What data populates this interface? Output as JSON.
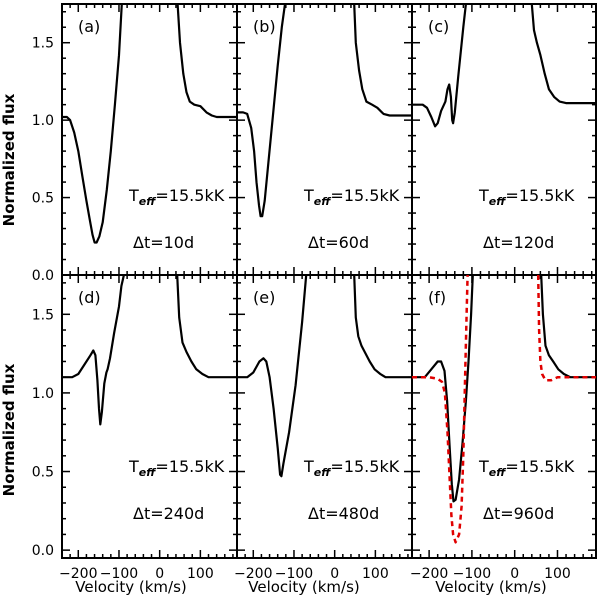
{
  "figure": {
    "ylabel": "Normalized flux",
    "xlabel": "Velocity (km/s)",
    "teff_main": "T",
    "teff_sub": "eff",
    "teff_value": "=15.5kK",
    "x_ticks": [
      -200,
      -100,
      0,
      100
    ],
    "y_ticks": [
      0.0,
      0.5,
      1.0,
      1.5
    ],
    "y_tick_labels": [
      "0.0",
      "0.5",
      "1.0",
      "1.5"
    ],
    "x_tick_labels": [
      "−200",
      "−100",
      "0",
      "100"
    ]
  },
  "chart_data": [
    {
      "id": "a",
      "label": "(a)",
      "delta_t": "Δt=10d",
      "type": "line",
      "xlim": [
        -240,
        190
      ],
      "ylim": [
        0.0,
        1.75
      ],
      "series": [
        {
          "name": "model",
          "style": "solid-black",
          "points": [
            [
              -240,
              1.02
            ],
            [
              -228,
              1.02
            ],
            [
              -220,
              1.0
            ],
            [
              -210,
              0.92
            ],
            [
              -200,
              0.8
            ],
            [
              -190,
              0.64
            ],
            [
              -180,
              0.48
            ],
            [
              -172,
              0.36
            ],
            [
              -165,
              0.26
            ],
            [
              -160,
              0.21
            ],
            [
              -155,
              0.21
            ],
            [
              -148,
              0.25
            ],
            [
              -140,
              0.34
            ],
            [
              -130,
              0.55
            ],
            [
              -120,
              0.8
            ],
            [
              -110,
              1.1
            ],
            [
              -100,
              1.42
            ],
            [
              -93,
              1.75
            ],
            null,
            [
              44,
              1.75
            ],
            [
              50,
              1.5
            ],
            [
              58,
              1.3
            ],
            [
              66,
              1.18
            ],
            [
              74,
              1.12
            ],
            [
              85,
              1.1
            ],
            [
              100,
              1.09
            ],
            [
              115,
              1.05
            ],
            [
              128,
              1.03
            ],
            [
              140,
              1.02
            ],
            [
              160,
              1.02
            ],
            [
              190,
              1.02
            ]
          ]
        }
      ]
    },
    {
      "id": "b",
      "label": "(b)",
      "delta_t": "Δt=60d",
      "type": "line",
      "xlim": [
        -240,
        190
      ],
      "ylim": [
        0.0,
        1.75
      ],
      "series": [
        {
          "name": "model",
          "style": "solid-black",
          "points": [
            [
              -240,
              1.05
            ],
            [
              -225,
              1.05
            ],
            [
              -215,
              1.04
            ],
            [
              -205,
              0.95
            ],
            [
              -198,
              0.8
            ],
            [
              -192,
              0.6
            ],
            [
              -186,
              0.45
            ],
            [
              -182,
              0.38
            ],
            [
              -178,
              0.38
            ],
            [
              -172,
              0.48
            ],
            [
              -163,
              0.72
            ],
            [
              -152,
              1.02
            ],
            [
              -140,
              1.35
            ],
            [
              -130,
              1.6
            ],
            [
              -122,
              1.75
            ],
            null,
            [
              48,
              1.75
            ],
            [
              52,
              1.5
            ],
            [
              60,
              1.32
            ],
            [
              68,
              1.2
            ],
            [
              78,
              1.12
            ],
            [
              92,
              1.1
            ],
            [
              105,
              1.08
            ],
            [
              120,
              1.04
            ],
            [
              135,
              1.03
            ],
            [
              190,
              1.03
            ]
          ]
        }
      ]
    },
    {
      "id": "c",
      "label": "(c)",
      "delta_t": "Δt=120d",
      "type": "line",
      "xlim": [
        -240,
        190
      ],
      "ylim": [
        0.0,
        1.75
      ],
      "series": [
        {
          "name": "model",
          "style": "solid-black",
          "points": [
            [
              -240,
              1.1
            ],
            [
              -215,
              1.1
            ],
            [
              -205,
              1.08
            ],
            [
              -195,
              1.02
            ],
            [
              -186,
              0.96
            ],
            [
              -180,
              0.98
            ],
            [
              -172,
              1.06
            ],
            [
              -162,
              1.12
            ],
            [
              -157,
              1.2
            ],
            [
              -153,
              1.23
            ],
            [
              -149,
              1.15
            ],
            [
              -146,
              1.0
            ],
            [
              -144,
              0.98
            ],
            [
              -140,
              1.05
            ],
            [
              -132,
              1.28
            ],
            [
              -120,
              1.6
            ],
            [
              -114,
              1.75
            ],
            null,
            [
              40,
              1.75
            ],
            [
              45,
              1.58
            ],
            [
              52,
              1.5
            ],
            [
              60,
              1.42
            ],
            [
              70,
              1.3
            ],
            [
              80,
              1.2
            ],
            [
              92,
              1.15
            ],
            [
              105,
              1.12
            ],
            [
              120,
              1.11
            ],
            [
              190,
              1.11
            ]
          ]
        }
      ]
    },
    {
      "id": "d",
      "label": "(d)",
      "delta_t": "Δt=240d",
      "type": "line",
      "xlim": [
        -240,
        190
      ],
      "ylim": [
        -0.05,
        1.75
      ],
      "series": [
        {
          "name": "model",
          "style": "solid-black",
          "points": [
            [
              -240,
              1.1
            ],
            [
              -215,
              1.1
            ],
            [
              -200,
              1.12
            ],
            [
              -185,
              1.18
            ],
            [
              -170,
              1.24
            ],
            [
              -163,
              1.27
            ],
            [
              -158,
              1.24
            ],
            [
              -153,
              1.08
            ],
            [
              -149,
              0.9
            ],
            [
              -146,
              0.8
            ],
            [
              -142,
              0.88
            ],
            [
              -136,
              1.06
            ],
            [
              -131,
              1.13
            ],
            [
              -128,
              1.15
            ],
            [
              -122,
              1.22
            ],
            [
              -112,
              1.38
            ],
            [
              -100,
              1.55
            ],
            [
              -94,
              1.68
            ],
            [
              -88,
              1.75
            ],
            null,
            [
              43,
              1.75
            ],
            [
              48,
              1.48
            ],
            [
              56,
              1.32
            ],
            [
              66,
              1.26
            ],
            [
              78,
              1.2
            ],
            [
              90,
              1.15
            ],
            [
              105,
              1.12
            ],
            [
              120,
              1.1
            ],
            [
              190,
              1.1
            ]
          ]
        }
      ]
    },
    {
      "id": "e",
      "label": "(e)",
      "delta_t": "Δt=480d",
      "type": "line",
      "xlim": [
        -240,
        190
      ],
      "ylim": [
        -0.05,
        1.75
      ],
      "series": [
        {
          "name": "model",
          "style": "solid-black",
          "points": [
            [
              -240,
              1.1
            ],
            [
              -215,
              1.1
            ],
            [
              -200,
              1.13
            ],
            [
              -185,
              1.2
            ],
            [
              -175,
              1.22
            ],
            [
              -168,
              1.2
            ],
            [
              -160,
              1.1
            ],
            [
              -150,
              0.9
            ],
            [
              -140,
              0.65
            ],
            [
              -134,
              0.48
            ],
            [
              -131,
              0.47
            ],
            [
              -126,
              0.55
            ],
            [
              -112,
              0.75
            ],
            [
              -96,
              1.05
            ],
            [
              -80,
              1.45
            ],
            [
              -70,
              1.75
            ],
            null,
            [
              48,
              1.75
            ],
            [
              52,
              1.48
            ],
            [
              58,
              1.36
            ],
            [
              66,
              1.3
            ],
            [
              76,
              1.25
            ],
            [
              86,
              1.2
            ],
            [
              98,
              1.15
            ],
            [
              112,
              1.12
            ],
            [
              125,
              1.1
            ],
            [
              190,
              1.1
            ]
          ]
        }
      ]
    },
    {
      "id": "f",
      "label": "(f)",
      "delta_t": "Δt=960d",
      "type": "line",
      "xlim": [
        -240,
        190
      ],
      "ylim": [
        -0.05,
        1.75
      ],
      "series": [
        {
          "name": "model",
          "style": "solid-black",
          "points": [
            [
              -240,
              1.1
            ],
            [
              -210,
              1.1
            ],
            [
              -195,
              1.15
            ],
            [
              -180,
              1.2
            ],
            [
              -172,
              1.2
            ],
            [
              -164,
              1.14
            ],
            [
              -158,
              0.95
            ],
            [
              -152,
              0.65
            ],
            [
              -147,
              0.42
            ],
            [
              -143,
              0.31
            ],
            [
              -138,
              0.32
            ],
            [
              -130,
              0.45
            ],
            [
              -122,
              0.68
            ],
            [
              -114,
              0.95
            ],
            [
              -108,
              1.2
            ],
            [
              -102,
              1.5
            ],
            [
              -98,
              1.75
            ],
            null,
            [
              62,
              1.75
            ],
            [
              66,
              1.5
            ],
            [
              72,
              1.3
            ],
            [
              80,
              1.24
            ],
            [
              90,
              1.2
            ],
            [
              102,
              1.15
            ],
            [
              115,
              1.12
            ],
            [
              130,
              1.1
            ],
            [
              190,
              1.1
            ]
          ]
        },
        {
          "name": "reference",
          "style": "dashed-red",
          "points": [
            [
              -240,
              1.1
            ],
            [
              -200,
              1.1
            ],
            [
              -180,
              1.09
            ],
            [
              -170,
              1.07
            ],
            [
              -163,
              1.0
            ],
            [
              -157,
              0.75
            ],
            [
              -152,
              0.45
            ],
            [
              -148,
              0.22
            ],
            [
              -144,
              0.1
            ],
            [
              -138,
              0.05
            ],
            [
              -130,
              0.1
            ],
            [
              -124,
              0.28
            ],
            [
              -120,
              0.6
            ],
            [
              -116,
              1.1
            ],
            [
              -112,
              1.55
            ],
            [
              -110,
              1.75
            ],
            null,
            [
              55,
              1.75
            ],
            [
              57,
              1.4
            ],
            [
              60,
              1.2
            ],
            [
              64,
              1.12
            ],
            [
              72,
              1.08
            ],
            [
              85,
              1.08
            ],
            [
              100,
              1.1
            ],
            [
              190,
              1.1
            ]
          ]
        }
      ]
    }
  ]
}
